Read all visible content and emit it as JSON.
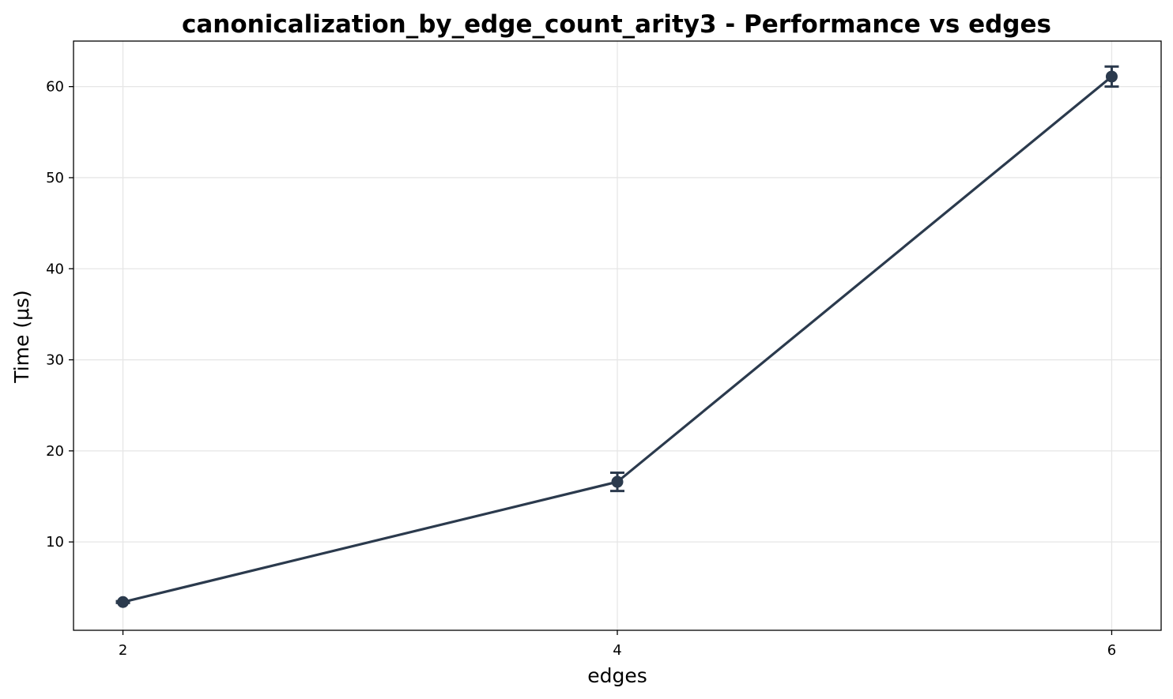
{
  "chart_data": {
    "type": "line",
    "title": "canonicalization_by_edge_count_arity3 - Performance vs edges",
    "xlabel": "edges",
    "ylabel": "Time (μs)",
    "x": [
      2,
      4,
      6
    ],
    "x_ticks": [
      2,
      4,
      6
    ],
    "y_ticks": [
      10,
      20,
      30,
      40,
      50,
      60
    ],
    "xlim": [
      1.8,
      6.2
    ],
    "ylim": [
      0.3,
      65
    ],
    "grid": true,
    "legend": "none",
    "series": [
      {
        "values": [
          3.4,
          16.6,
          61.1
        ],
        "error": [
          0.1,
          1.0,
          1.1
        ],
        "color": "#2b3a4d",
        "marker": "circle"
      }
    ]
  }
}
